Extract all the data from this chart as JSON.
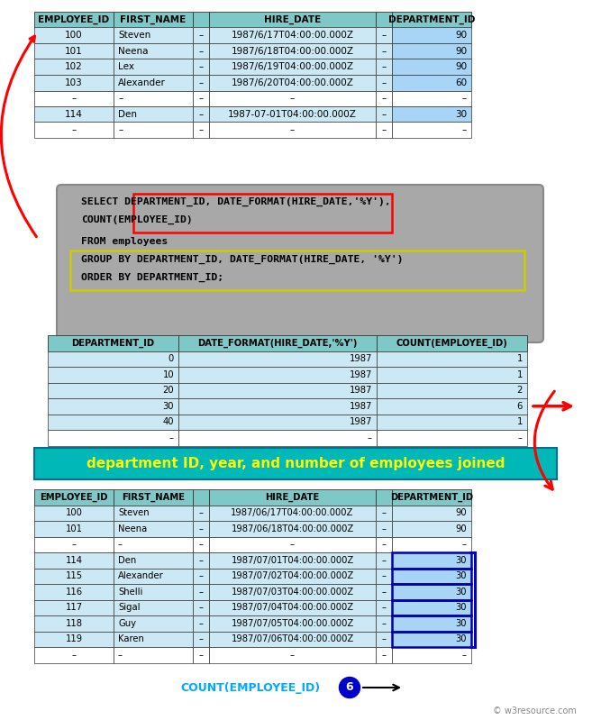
{
  "bg_color": "#ffffff",
  "table1": {
    "headers": [
      "EMPLOYEE_ID",
      "FIRST_NAME",
      "",
      "HIRE_DATE",
      "",
      "DEPARTMENT_ID"
    ],
    "rows": [
      [
        "100",
        "Steven",
        "–",
        "1987/6/17T04:00:00.000Z",
        "–",
        "90"
      ],
      [
        "101",
        "Neena",
        "–",
        "1987/6/18T04:00:00.000Z",
        "–",
        "90"
      ],
      [
        "102",
        "Lex",
        "–",
        "1987/6/19T04:00:00.000Z",
        "–",
        "90"
      ],
      [
        "103",
        "Alexander",
        "–",
        "1987/6/20T04:00:00.000Z",
        "–",
        "60"
      ],
      [
        "–",
        "–",
        "–",
        "–",
        "–",
        "–"
      ],
      [
        "114",
        "Den",
        "–",
        "1987-07-01T04:00:00.000Z",
        "–",
        "30"
      ],
      [
        "–",
        "–",
        "–",
        "–",
        "–",
        "–"
      ]
    ],
    "header_bg": "#7fc8c8",
    "row_bgs": [
      "#cce8f4",
      "#cce8f4",
      "#cce8f4",
      "#cce8f4",
      "#ffffff",
      "#cce8f4",
      "#ffffff"
    ],
    "dept_highlight_rows": [
      0,
      1,
      2,
      3,
      5
    ],
    "dept_col_bg": "#a8d5f5"
  },
  "sql_lines": [
    "SELECT DEPARTMENT_ID, DATE_FORMAT(HIRE_DATE,'%Y'),",
    "COUNT(EMPLOYEE_ID)",
    "FROM employees",
    "GROUP BY DEPARTMENT_ID, DATE_FORMAT(HIRE_DATE, '%Y')",
    "ORDER BY DEPARTMENT_ID;"
  ],
  "sql_bg": "#a8a8a8",
  "table2": {
    "headers": [
      "DEPARTMENT_ID",
      "DATE_FORMAT(HIRE_DATE,'%Y')",
      "COUNT(EMPLOYEE_ID)"
    ],
    "rows": [
      [
        "0",
        "1987",
        "1"
      ],
      [
        "10",
        "1987",
        "1"
      ],
      [
        "20",
        "1987",
        "2"
      ],
      [
        "30",
        "1987",
        "6"
      ],
      [
        "40",
        "1987",
        "1"
      ],
      [
        "–",
        "–",
        "–"
      ]
    ],
    "header_bg": "#7fc8c8",
    "row_bg": "#cce8f4"
  },
  "result_title": "department ID, year, and number of employees joined",
  "result_title_bg": "#00b8b8",
  "result_title_color": "#ffff00",
  "table3": {
    "headers": [
      "EMPLOYEE_ID",
      "FIRST_NAME",
      "",
      "HIRE_DATE",
      "",
      "DEPARTMENT_ID"
    ],
    "rows": [
      [
        "100",
        "Steven",
        "–",
        "1987/06/17T04:00:00.000Z",
        "–",
        "90"
      ],
      [
        "101",
        "Neena",
        "–",
        "1987/06/18T04:00:00.000Z",
        "–",
        "90"
      ],
      [
        "–",
        "–",
        "–",
        "–",
        "–",
        "–"
      ],
      [
        "114",
        "Den",
        "–",
        "1987/07/01T04:00:00.000Z",
        "–",
        "30"
      ],
      [
        "115",
        "Alexander",
        "–",
        "1987/07/02T04:00:00.000Z",
        "–",
        "30"
      ],
      [
        "116",
        "Shelli",
        "–",
        "1987/07/03T04:00:00.000Z",
        "–",
        "30"
      ],
      [
        "117",
        "Sigal",
        "–",
        "1987/07/04T04:00:00.000Z",
        "–",
        "30"
      ],
      [
        "118",
        "Guy",
        "–",
        "1987/07/05T04:00:00.000Z",
        "–",
        "30"
      ],
      [
        "119",
        "Karen",
        "–",
        "1987/07/06T04:00:00.000Z",
        "–",
        "30"
      ],
      [
        "–",
        "–",
        "–",
        "–",
        "–",
        "–"
      ]
    ],
    "header_bg": "#7fc8c8",
    "row_bgs": [
      "#cce8f4",
      "#cce8f4",
      "#ffffff",
      "#cce8f4",
      "#cce8f4",
      "#cce8f4",
      "#cce8f4",
      "#cce8f4",
      "#cce8f4",
      "#ffffff"
    ],
    "dept30_rows": [
      3,
      4,
      5,
      6,
      7,
      8
    ],
    "dept_col_bg": "#a8d5f5"
  },
  "count_label": "COUNT(EMPLOYEE_ID)",
  "count_value": "6",
  "count_label_color": "#00aaff",
  "count_value_bg": "#0000cc",
  "watermark": "© w3resource.com"
}
